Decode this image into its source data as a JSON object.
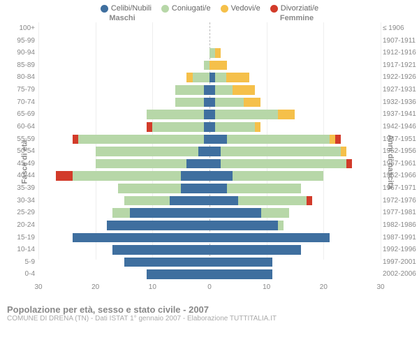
{
  "legend": [
    {
      "label": "Celibi/Nubili",
      "color": "#3f6f9f"
    },
    {
      "label": "Coniugati/e",
      "color": "#b7d7a8"
    },
    {
      "label": "Vedovi/e",
      "color": "#f5c04a"
    },
    {
      "label": "Divorziati/e",
      "color": "#d23b2a"
    }
  ],
  "header": {
    "male": "Maschi",
    "female": "Femmine"
  },
  "axis": {
    "left_label": "Fasce di età",
    "right_label": "Anni di nascita",
    "x_max": 30,
    "x_ticks": [
      30,
      20,
      10,
      0,
      10,
      20,
      30
    ]
  },
  "footer": {
    "title": "Popolazione per età, sesso e stato civile - 2007",
    "subtitle": "COMUNE DI DRENA (TN) - Dati ISTAT 1° gennaio 2007 - Elaborazione TUTTITALIA.IT"
  },
  "rows": [
    {
      "age": "100+",
      "birth": "≤ 1906",
      "m": [
        0,
        0,
        0,
        0
      ],
      "f": [
        0,
        0,
        0,
        0
      ]
    },
    {
      "age": "95-99",
      "birth": "1907-1911",
      "m": [
        0,
        0,
        0,
        0
      ],
      "f": [
        0,
        0,
        0,
        0
      ]
    },
    {
      "age": "90-94",
      "birth": "1912-1916",
      "m": [
        0,
        0,
        0,
        0
      ],
      "f": [
        0,
        1,
        1,
        0
      ]
    },
    {
      "age": "85-89",
      "birth": "1917-1921",
      "m": [
        0,
        1,
        0,
        0
      ],
      "f": [
        0,
        0,
        3,
        0
      ]
    },
    {
      "age": "80-84",
      "birth": "1922-1926",
      "m": [
        0,
        3,
        1,
        0
      ],
      "f": [
        1,
        2,
        4,
        0
      ]
    },
    {
      "age": "75-79",
      "birth": "1927-1931",
      "m": [
        1,
        5,
        0,
        0
      ],
      "f": [
        1,
        3,
        4,
        0
      ]
    },
    {
      "age": "70-74",
      "birth": "1932-1936",
      "m": [
        1,
        5,
        0,
        0
      ],
      "f": [
        1,
        5,
        3,
        0
      ]
    },
    {
      "age": "65-69",
      "birth": "1937-1941",
      "m": [
        1,
        10,
        0,
        0
      ],
      "f": [
        1,
        11,
        3,
        0
      ]
    },
    {
      "age": "60-64",
      "birth": "1942-1946",
      "m": [
        1,
        9,
        0,
        1
      ],
      "f": [
        1,
        7,
        1,
        0
      ]
    },
    {
      "age": "55-59",
      "birth": "1947-1951",
      "m": [
        1,
        22,
        0,
        1
      ],
      "f": [
        3,
        18,
        1,
        1
      ]
    },
    {
      "age": "50-54",
      "birth": "1952-1956",
      "m": [
        2,
        18,
        0,
        0
      ],
      "f": [
        2,
        21,
        1,
        0
      ]
    },
    {
      "age": "45-49",
      "birth": "1957-1961",
      "m": [
        4,
        16,
        0,
        0
      ],
      "f": [
        2,
        22,
        0,
        1
      ]
    },
    {
      "age": "40-44",
      "birth": "1962-1966",
      "m": [
        5,
        19,
        0,
        3
      ],
      "f": [
        4,
        16,
        0,
        0
      ]
    },
    {
      "age": "35-39",
      "birth": "1967-1971",
      "m": [
        5,
        11,
        0,
        0
      ],
      "f": [
        3,
        13,
        0,
        0
      ]
    },
    {
      "age": "30-34",
      "birth": "1972-1976",
      "m": [
        7,
        8,
        0,
        0
      ],
      "f": [
        5,
        12,
        0,
        1
      ]
    },
    {
      "age": "25-29",
      "birth": "1977-1981",
      "m": [
        14,
        3,
        0,
        0
      ],
      "f": [
        9,
        5,
        0,
        0
      ]
    },
    {
      "age": "20-24",
      "birth": "1982-1986",
      "m": [
        18,
        0,
        0,
        0
      ],
      "f": [
        12,
        1,
        0,
        0
      ]
    },
    {
      "age": "15-19",
      "birth": "1987-1991",
      "m": [
        24,
        0,
        0,
        0
      ],
      "f": [
        21,
        0,
        0,
        0
      ]
    },
    {
      "age": "10-14",
      "birth": "1992-1996",
      "m": [
        17,
        0,
        0,
        0
      ],
      "f": [
        16,
        0,
        0,
        0
      ]
    },
    {
      "age": "5-9",
      "birth": "1997-2001",
      "m": [
        15,
        0,
        0,
        0
      ],
      "f": [
        11,
        0,
        0,
        0
      ]
    },
    {
      "age": "0-4",
      "birth": "2002-2006",
      "m": [
        11,
        0,
        0,
        0
      ],
      "f": [
        11,
        0,
        0,
        0
      ]
    }
  ],
  "colors": {
    "celibi": "#3f6f9f",
    "coniugati": "#b7d7a8",
    "vedovi": "#f5c04a",
    "divorziati": "#d23b2a",
    "grid": "#eeeeee",
    "bg": "#ffffff"
  }
}
